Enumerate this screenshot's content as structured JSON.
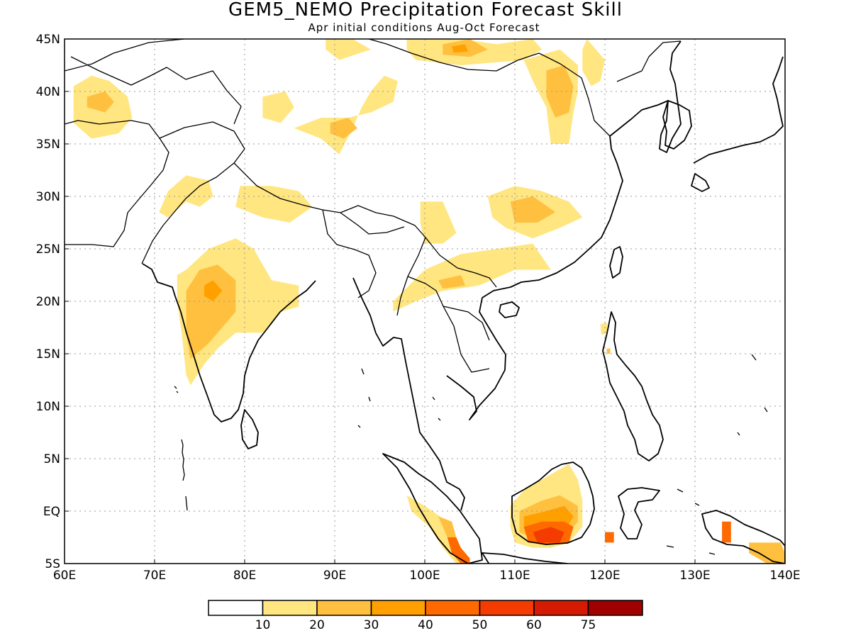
{
  "title": "GEM5_NEMO Precipitation Forecast Skill",
  "subtitle": "Apr initial conditions  Aug-Oct Forecast",
  "map": {
    "lon_range": [
      60,
      140
    ],
    "lat_range": [
      -5,
      45
    ],
    "lon_ticks": [
      {
        "value": 60,
        "label": "60E"
      },
      {
        "value": 70,
        "label": "70E"
      },
      {
        "value": 80,
        "label": "80E"
      },
      {
        "value": 90,
        "label": "90E"
      },
      {
        "value": 100,
        "label": "100E"
      },
      {
        "value": 110,
        "label": "110E"
      },
      {
        "value": 120,
        "label": "120E"
      },
      {
        "value": 130,
        "label": "130E"
      },
      {
        "value": 140,
        "label": "140E"
      }
    ],
    "lat_ticks": [
      {
        "value": 45,
        "label": "45N"
      },
      {
        "value": 40,
        "label": "40N"
      },
      {
        "value": 35,
        "label": "35N"
      },
      {
        "value": 30,
        "label": "30N"
      },
      {
        "value": 25,
        "label": "25N"
      },
      {
        "value": 20,
        "label": "20N"
      },
      {
        "value": 15,
        "label": "15N"
      },
      {
        "value": 10,
        "label": "10N"
      },
      {
        "value": 5,
        "label": "5N"
      },
      {
        "value": 0,
        "label": "EQ"
      },
      {
        "value": -5,
        "label": "5S"
      }
    ],
    "grid": true
  },
  "colorbar": {
    "colors": [
      "#ffffff",
      "#ffe680",
      "#ffc040",
      "#ffa000",
      "#ff6a00",
      "#f53c00",
      "#d41a00",
      "#a00000"
    ],
    "labels": [
      "10",
      "20",
      "30",
      "40",
      "50",
      "60",
      "75"
    ]
  },
  "skill_regions": [
    {
      "level": 1,
      "points": [
        [
          61,
          40.5
        ],
        [
          63,
          41.5
        ],
        [
          65,
          41
        ],
        [
          67,
          39.5
        ],
        [
          67.5,
          37.5
        ],
        [
          66,
          36
        ],
        [
          63,
          35.5
        ],
        [
          61,
          37
        ]
      ]
    },
    {
      "level": 2,
      "points": [
        [
          62.5,
          39.5
        ],
        [
          64.5,
          40
        ],
        [
          65.5,
          39
        ],
        [
          64.5,
          38
        ],
        [
          62.5,
          38.5
        ]
      ]
    },
    {
      "level": 1,
      "points": [
        [
          73.5,
          32
        ],
        [
          76,
          31.5
        ],
        [
          76.5,
          30
        ],
        [
          75,
          29
        ],
        [
          73.5,
          29.5
        ],
        [
          71.5,
          28
        ],
        [
          70.5,
          28.5
        ],
        [
          71.5,
          30.5
        ]
      ]
    },
    {
      "level": 1,
      "points": [
        [
          79.5,
          31
        ],
        [
          83,
          31
        ],
        [
          86,
          30.5
        ],
        [
          87.5,
          29
        ],
        [
          85,
          27.5
        ],
        [
          82,
          28
        ],
        [
          79,
          29
        ]
      ]
    },
    {
      "level": 1,
      "points": [
        [
          82,
          39.5
        ],
        [
          84.5,
          40
        ],
        [
          85.5,
          38.5
        ],
        [
          84,
          37
        ],
        [
          82,
          37.5
        ]
      ]
    },
    {
      "level": 1,
      "points": [
        [
          85.5,
          36.5
        ],
        [
          88.5,
          37.5
        ],
        [
          91.5,
          37.5
        ],
        [
          94,
          38
        ],
        [
          96.5,
          39
        ],
        [
          97,
          41
        ],
        [
          95.5,
          41.5
        ],
        [
          94,
          40
        ],
        [
          93,
          38.5
        ],
        [
          92,
          36.5
        ],
        [
          90.5,
          34
        ],
        [
          88.5,
          35.5
        ]
      ]
    },
    {
      "level": 2,
      "points": [
        [
          89.5,
          37
        ],
        [
          91.5,
          37.5
        ],
        [
          92.5,
          36.5
        ],
        [
          91,
          35.5
        ],
        [
          89.5,
          36
        ]
      ]
    },
    {
      "level": 1,
      "points": [
        [
          89,
          45
        ],
        [
          92,
          45
        ],
        [
          94,
          44
        ],
        [
          90.5,
          43
        ],
        [
          89,
          44
        ]
      ]
    },
    {
      "level": 1,
      "points": [
        [
          98,
          45
        ],
        [
          104,
          45
        ],
        [
          108,
          44.5
        ],
        [
          112,
          45
        ],
        [
          113,
          44
        ],
        [
          111,
          43
        ],
        [
          104,
          42.5
        ],
        [
          99,
          43
        ],
        [
          98,
          44
        ]
      ]
    },
    {
      "level": 2,
      "points": [
        [
          102,
          44.5
        ],
        [
          105,
          45
        ],
        [
          107,
          44
        ],
        [
          105,
          43.3
        ],
        [
          102,
          43.5
        ]
      ]
    },
    {
      "level": 3,
      "points": [
        [
          103,
          44.3
        ],
        [
          104.5,
          44.5
        ],
        [
          104.8,
          43.8
        ],
        [
          103.2,
          43.7
        ]
      ]
    },
    {
      "level": 1,
      "points": [
        [
          111,
          43
        ],
        [
          115,
          44
        ],
        [
          117,
          42.5
        ],
        [
          117,
          40
        ],
        [
          116.5,
          38
        ],
        [
          116,
          35
        ],
        [
          114,
          35
        ],
        [
          113.5,
          38.5
        ],
        [
          112,
          41
        ]
      ]
    },
    {
      "level": 2,
      "points": [
        [
          113.5,
          42
        ],
        [
          115.5,
          42.5
        ],
        [
          116.5,
          40.5
        ],
        [
          116,
          38
        ],
        [
          114.5,
          37.5
        ],
        [
          113.5,
          39.5
        ]
      ]
    },
    {
      "level": 1,
      "points": [
        [
          118,
          45
        ],
        [
          119,
          44
        ],
        [
          120,
          43
        ],
        [
          119.5,
          41
        ],
        [
          118.5,
          40.5
        ],
        [
          117.5,
          42
        ],
        [
          117.5,
          44
        ]
      ]
    },
    {
      "level": 1,
      "points": [
        [
          99.5,
          29.5
        ],
        [
          102,
          29.5
        ],
        [
          103.5,
          26.5
        ],
        [
          102,
          25.5
        ],
        [
          100,
          25.5
        ],
        [
          99.5,
          27.5
        ]
      ]
    },
    {
      "level": 1,
      "points": [
        [
          107,
          30
        ],
        [
          110,
          31
        ],
        [
          113,
          30.5
        ],
        [
          116,
          29.5
        ],
        [
          117.5,
          28
        ],
        [
          115,
          27
        ],
        [
          112,
          26
        ],
        [
          109,
          27
        ],
        [
          107.5,
          28
        ]
      ]
    },
    {
      "level": 2,
      "points": [
        [
          109.5,
          29.5
        ],
        [
          112,
          30
        ],
        [
          114.5,
          28.5
        ],
        [
          112.5,
          27.5
        ],
        [
          110,
          27.5
        ]
      ]
    },
    {
      "level": 1,
      "points": [
        [
          96.5,
          20
        ],
        [
          100,
          23
        ],
        [
          104,
          24.5
        ],
        [
          108,
          25
        ],
        [
          112,
          25.5
        ],
        [
          114,
          23
        ],
        [
          110,
          23
        ],
        [
          106,
          21.5
        ],
        [
          102,
          21
        ],
        [
          99,
          20
        ],
        [
          96.5,
          19
        ]
      ]
    },
    {
      "level": 2,
      "points": [
        [
          101.5,
          22
        ],
        [
          104,
          22.5
        ],
        [
          104.5,
          21.5
        ],
        [
          102,
          21.2
        ]
      ]
    },
    {
      "level": 1,
      "points": [
        [
          72.5,
          22.5
        ],
        [
          73.5,
          23
        ],
        [
          76,
          25
        ],
        [
          79,
          26
        ],
        [
          81,
          25
        ],
        [
          83,
          22
        ],
        [
          86,
          21.5
        ],
        [
          86,
          19.5
        ],
        [
          84,
          19
        ],
        [
          82,
          17
        ],
        [
          79,
          17
        ],
        [
          77,
          15.5
        ],
        [
          75.5,
          14
        ],
        [
          74,
          12
        ],
        [
          73.5,
          13
        ],
        [
          73,
          17
        ],
        [
          72.5,
          20
        ]
      ]
    },
    {
      "level": 2,
      "points": [
        [
          73.5,
          21
        ],
        [
          75,
          23
        ],
        [
          77,
          23.5
        ],
        [
          79,
          22
        ],
        [
          79,
          19
        ],
        [
          77.5,
          17.5
        ],
        [
          76,
          16
        ],
        [
          74,
          14.5
        ],
        [
          73.5,
          17
        ]
      ]
    },
    {
      "level": 3,
      "points": [
        [
          75.5,
          21.5
        ],
        [
          76.5,
          22
        ],
        [
          77.5,
          21
        ],
        [
          76.5,
          20
        ],
        [
          75.5,
          20.5
        ]
      ]
    },
    {
      "level": 1,
      "points": [
        [
          119.5,
          17.8
        ],
        [
          120.2,
          18
        ],
        [
          120.3,
          17
        ],
        [
          119.6,
          16.8
        ]
      ]
    },
    {
      "level": 2,
      "points": [
        [
          120.2,
          15.5
        ],
        [
          120.6,
          15.5
        ],
        [
          120.6,
          15
        ],
        [
          120.2,
          15
        ]
      ]
    },
    {
      "level": 1,
      "points": [
        [
          98,
          1.5
        ],
        [
          100,
          0.5
        ],
        [
          102.5,
          -1
        ],
        [
          104,
          -3.5
        ],
        [
          105,
          -5
        ],
        [
          103.5,
          -5
        ],
        [
          102,
          -3.5
        ],
        [
          100.5,
          -1.5
        ],
        [
          98.5,
          0
        ]
      ]
    },
    {
      "level": 2,
      "points": [
        [
          101.5,
          -0.5
        ],
        [
          103,
          -1
        ],
        [
          103.5,
          -2.5
        ],
        [
          102.5,
          -2.5
        ]
      ]
    },
    {
      "level": 4,
      "points": [
        [
          102.5,
          -2.5
        ],
        [
          103.5,
          -2.5
        ],
        [
          104,
          -3.5
        ],
        [
          105,
          -4.5
        ],
        [
          105,
          -5
        ],
        [
          104,
          -5
        ],
        [
          103,
          -4
        ]
      ]
    },
    {
      "level": 1,
      "points": [
        [
          109.5,
          0.5
        ],
        [
          111,
          2
        ],
        [
          113,
          3
        ],
        [
          115,
          4
        ],
        [
          116,
          4.5
        ],
        [
          117,
          3
        ],
        [
          117.5,
          1
        ],
        [
          117.5,
          -1.5
        ],
        [
          116,
          -3
        ],
        [
          114,
          -3.5
        ],
        [
          112,
          -3.5
        ],
        [
          110,
          -3
        ],
        [
          109.5,
          -1.5
        ]
      ]
    },
    {
      "level": 2,
      "points": [
        [
          110.5,
          0
        ],
        [
          113,
          1
        ],
        [
          115,
          1.5
        ],
        [
          117,
          0.5
        ],
        [
          117,
          -1
        ],
        [
          115.5,
          -2.5
        ],
        [
          113,
          -3
        ],
        [
          110.5,
          -2
        ]
      ]
    },
    {
      "level": 3,
      "points": [
        [
          111,
          -0.5
        ],
        [
          113.5,
          0
        ],
        [
          115.5,
          0.5
        ],
        [
          116.5,
          -0.5
        ],
        [
          115.5,
          -2
        ],
        [
          112,
          -2.5
        ],
        [
          111,
          -1.5
        ]
      ]
    },
    {
      "level": 4,
      "points": [
        [
          111,
          -1.5
        ],
        [
          113,
          -1
        ],
        [
          115.5,
          -1
        ],
        [
          116.5,
          -1.5
        ],
        [
          116,
          -3
        ],
        [
          114,
          -3.2
        ],
        [
          111.5,
          -3
        ]
      ]
    },
    {
      "level": 5,
      "points": [
        [
          112,
          -2
        ],
        [
          114,
          -1.5
        ],
        [
          115.5,
          -2
        ],
        [
          115,
          -3
        ],
        [
          112.5,
          -3
        ]
      ]
    },
    {
      "level": 4,
      "points": [
        [
          120,
          -2
        ],
        [
          121,
          -2
        ],
        [
          121,
          -3
        ],
        [
          120,
          -3
        ]
      ]
    },
    {
      "level": 4,
      "points": [
        [
          133,
          -1
        ],
        [
          134,
          -1
        ],
        [
          134,
          -3
        ],
        [
          133,
          -3
        ]
      ]
    },
    {
      "level": 2,
      "points": [
        [
          136,
          -3
        ],
        [
          139.5,
          -3
        ],
        [
          140,
          -4
        ],
        [
          140,
          -5
        ],
        [
          138,
          -5
        ],
        [
          136,
          -4
        ]
      ]
    }
  ]
}
